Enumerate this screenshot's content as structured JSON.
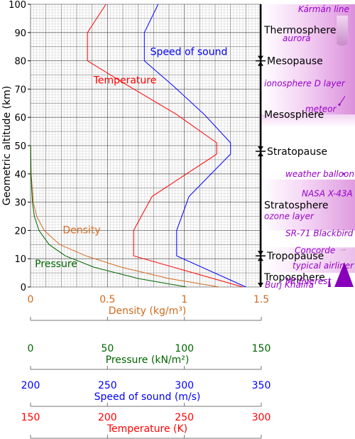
{
  "chart_data": {
    "type": "line",
    "ylabel": "Geometric altitude (km)",
    "ylim": [
      0,
      100
    ],
    "y_ticks": [
      0,
      10,
      20,
      30,
      40,
      50,
      60,
      70,
      80,
      90,
      100
    ],
    "grid": true,
    "series": [
      {
        "name": "Temperature",
        "color": "#ff0000",
        "points": [
          [
            288,
            0
          ],
          [
            217,
            11
          ],
          [
            217,
            20
          ],
          [
            229,
            32
          ],
          [
            271,
            47
          ],
          [
            271,
            51
          ],
          [
            245,
            61
          ],
          [
            214,
            71
          ],
          [
            187,
            80
          ],
          [
            187,
            90
          ],
          [
            199,
            100
          ]
        ]
      },
      {
        "name": "Speed of sound",
        "color": "#0000ff",
        "points": [
          [
            340,
            0
          ],
          [
            295,
            11
          ],
          [
            295,
            20
          ],
          [
            303,
            32
          ],
          [
            330,
            47
          ],
          [
            330,
            51
          ],
          [
            313,
            61
          ],
          [
            293,
            71
          ],
          [
            274,
            80
          ],
          [
            274,
            90
          ],
          [
            283,
            100
          ]
        ]
      },
      {
        "name": "Density",
        "color": "#d2691e",
        "points": [
          [
            1.225,
            0
          ],
          [
            0.9,
            3
          ],
          [
            0.59,
            7
          ],
          [
            0.36,
            11
          ],
          [
            0.19,
            15
          ],
          [
            0.088,
            20
          ],
          [
            0.04,
            25
          ],
          [
            0.018,
            30
          ],
          [
            0.004,
            40
          ],
          [
            0.001,
            50
          ]
        ]
      },
      {
        "name": "Pressure",
        "color": "#006400",
        "points": [
          [
            101.3,
            0
          ],
          [
            70.1,
            3
          ],
          [
            41.1,
            7
          ],
          [
            22.6,
            11
          ],
          [
            12.1,
            15
          ],
          [
            5.5,
            20
          ],
          [
            2.5,
            25
          ],
          [
            1.2,
            30
          ],
          [
            0.29,
            40
          ],
          [
            0.08,
            50
          ]
        ]
      }
    ],
    "bottom_axes": [
      {
        "label": "Density (kg/m³)",
        "color": "#d2691e",
        "ticks": [
          "0",
          "0.5",
          "1",
          "1.5"
        ],
        "range": [
          0,
          1.5
        ]
      },
      {
        "label": "Pressure (kN/m²)",
        "color": "#006400",
        "ticks": [
          "0",
          "50",
          "100",
          "150"
        ],
        "range": [
          0,
          150
        ]
      },
      {
        "label": "Speed of sound (m/s)",
        "color": "#0000ff",
        "ticks": [
          "200",
          "250",
          "300",
          "350"
        ],
        "range": [
          200,
          350
        ]
      },
      {
        "label": "Temperature (K)",
        "color": "#ff0000",
        "ticks": [
          "150",
          "200",
          "250",
          "300"
        ],
        "range": [
          150,
          300
        ]
      }
    ],
    "layers": [
      {
        "name": "Troposphere",
        "altitude": 3.5
      },
      {
        "name": "Tropopause",
        "altitude": 11
      },
      {
        "name": "Stratosphere",
        "altitude": 29
      },
      {
        "name": "Stratopause",
        "altitude": 48
      },
      {
        "name": "Mesosphere",
        "altitude": 61
      },
      {
        "name": "Mesopause",
        "altitude": 80
      },
      {
        "name": "Thermosphere",
        "altitude": 91
      }
    ],
    "pause_altitudes": [
      11,
      48,
      80
    ],
    "annotations": [
      {
        "label": "Kármán line",
        "altitude": 100
      },
      {
        "label": "aurora",
        "altitude": 88
      },
      {
        "label": "ionosphere D layer",
        "altitude": 72
      },
      {
        "label": "meteor",
        "altitude": 63
      },
      {
        "label": "weather balloon",
        "altitude": 40
      },
      {
        "label": "NASA X-43A",
        "altitude": 33
      },
      {
        "label": "ozone layer",
        "altitude": 25
      },
      {
        "label": "SR-71 Blackbird",
        "altitude": 19
      },
      {
        "label": "Concorde",
        "altitude": 13
      },
      {
        "label": "typical airliner",
        "altitude": 7.5
      },
      {
        "label": "Mt Everest",
        "altitude": 2
      },
      {
        "label": "Burj Khalifa",
        "altitude": -2
      }
    ],
    "annotation_color": "#9900cc"
  }
}
